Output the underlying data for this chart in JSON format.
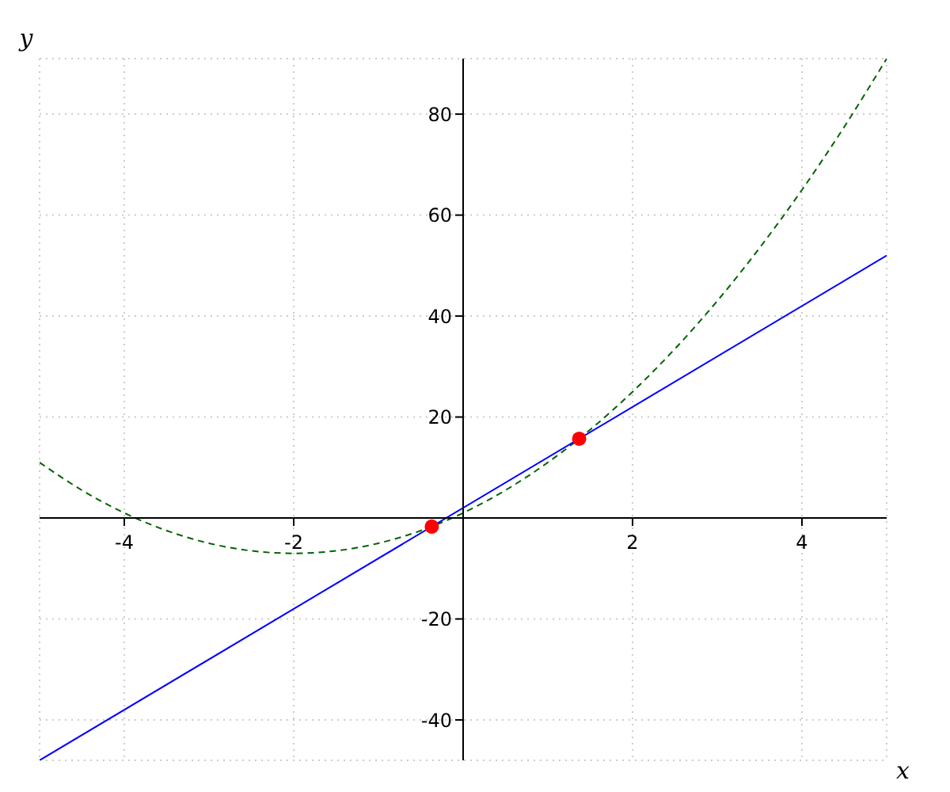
{
  "chart_data": {
    "type": "line",
    "xlabel": "x",
    "ylabel": "y",
    "xlim": [
      -5,
      5
    ],
    "ylim": [
      -48,
      91
    ],
    "xticks": [
      -4,
      -2,
      2,
      4
    ],
    "yticks": [
      -40,
      -20,
      20,
      40,
      60,
      80
    ],
    "grid": true,
    "series": [
      {
        "type": "line",
        "color": "#006400",
        "line_style": "dashed",
        "marker": "none",
        "x": [
          -5,
          -4.5,
          -4,
          -3.5,
          -3,
          -2.5,
          -2,
          -1.5,
          -1,
          -0.5,
          0,
          0.5,
          1,
          1.5,
          2,
          2.5,
          3,
          3.5,
          4,
          4.5,
          5
        ],
        "values": [
          11,
          5.5,
          1,
          -2.5,
          -5,
          -6.5,
          -7,
          -6.5,
          -5,
          -2.5,
          1,
          5.5,
          11,
          17.5,
          25,
          33.5,
          43,
          53.5,
          65,
          77.5,
          91
        ]
      },
      {
        "type": "line",
        "color": "#0000ff",
        "line_style": "solid",
        "marker": "none",
        "x": [
          -5,
          5
        ],
        "values": [
          -48,
          52
        ]
      },
      {
        "type": "scatter",
        "color": "#ff0000",
        "marker": "circle",
        "x": [
          -0.37,
          1.37
        ],
        "values": [
          -1.7,
          15.7
        ]
      }
    ]
  }
}
